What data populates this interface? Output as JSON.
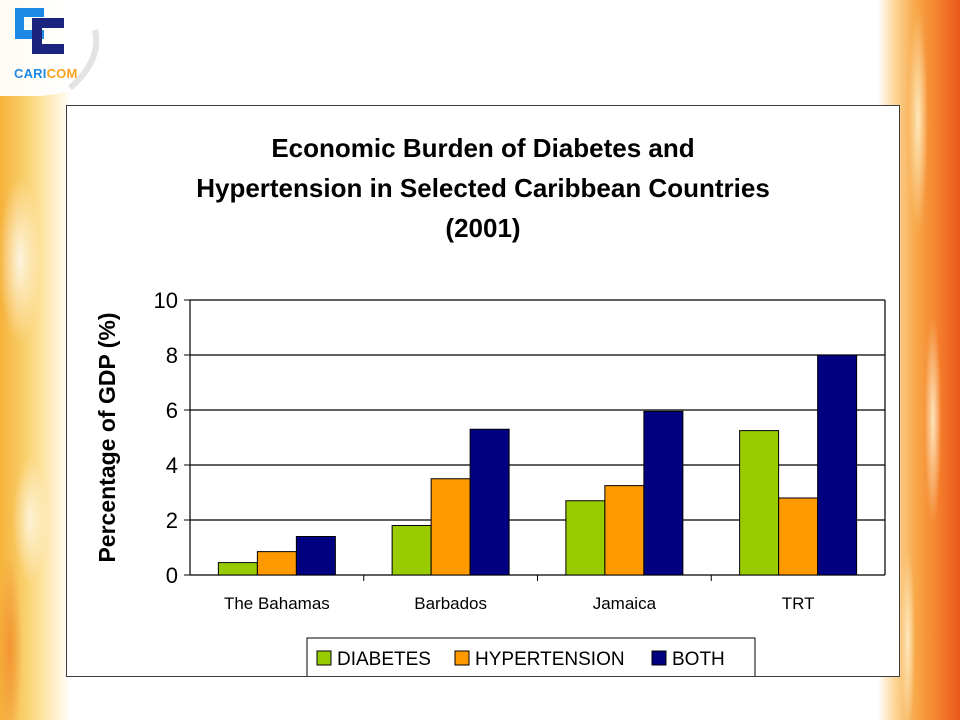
{
  "logo": {
    "text_part1": "CARI",
    "text_part2": "COM",
    "colors": [
      "#1e88e5",
      "#1a237e",
      "#f7a21b"
    ]
  },
  "chart_data": {
    "type": "bar",
    "title_lines": [
      "Economic Burden of Diabetes and",
      "Hypertension in Selected Caribbean Countries",
      "(2001)"
    ],
    "categories": [
      "The Bahamas",
      "Barbados",
      "Jamaica",
      "TRT"
    ],
    "series": [
      {
        "name": "DIABETES",
        "color": "#99cc00",
        "values": [
          0.45,
          1.8,
          2.7,
          5.25
        ]
      },
      {
        "name": "HYPERTENSION",
        "color": "#ff9900",
        "values": [
          0.85,
          3.5,
          3.25,
          2.8
        ]
      },
      {
        "name": "BOTH",
        "color": "#000080",
        "values": [
          1.4,
          5.3,
          5.95,
          8.0
        ]
      }
    ],
    "xlabel": "",
    "ylabel": "Percentage of GDP (%)",
    "ylim": [
      0,
      10
    ],
    "yticks": [
      0,
      2,
      4,
      6,
      8,
      10
    ],
    "grid": true,
    "legend_position": "bottom"
  }
}
